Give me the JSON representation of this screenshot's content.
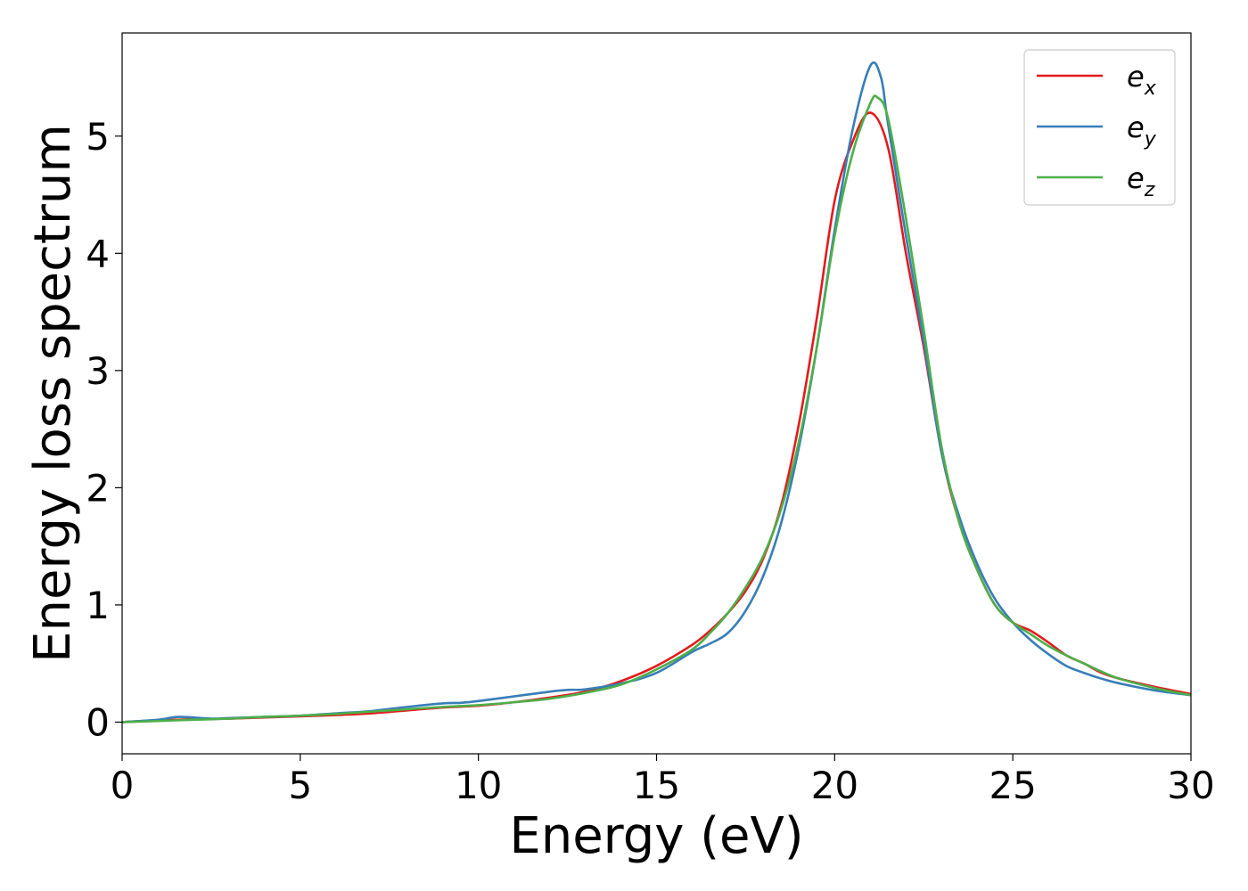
{
  "chart_data": {
    "type": "line",
    "xlabel": "Energy (eV)",
    "ylabel": "Energy loss spectrum",
    "xlim": [
      0,
      30
    ],
    "ylim": [
      -0.27,
      5.88
    ],
    "xticks": [
      0,
      5,
      10,
      15,
      20,
      25,
      30
    ],
    "yticks": [
      0,
      1,
      2,
      3,
      4,
      5
    ],
    "grid": false,
    "legend_position": "top-right",
    "series": [
      {
        "name": "e_x",
        "legend_base": "e",
        "legend_sub": "x",
        "color": "#e41a1c",
        "x": [
          0,
          1,
          2,
          3,
          4,
          5,
          6,
          7,
          8,
          9,
          10,
          11,
          12,
          13,
          14,
          15,
          16,
          16.5,
          17,
          17.5,
          18,
          18.5,
          19,
          19.5,
          20,
          20.5,
          21,
          21.5,
          22,
          22.5,
          23,
          23.5,
          24,
          24.5,
          25,
          25.5,
          26,
          26.5,
          27,
          27.5,
          28,
          29,
          30
        ],
        "y": [
          0,
          0.015,
          0.025,
          0.03,
          0.04,
          0.05,
          0.06,
          0.075,
          0.1,
          0.125,
          0.14,
          0.17,
          0.21,
          0.26,
          0.35,
          0.48,
          0.66,
          0.78,
          0.93,
          1.12,
          1.4,
          1.85,
          2.55,
          3.45,
          4.45,
          4.95,
          5.2,
          4.9,
          4.0,
          3.2,
          2.3,
          1.7,
          1.3,
          1.0,
          0.85,
          0.78,
          0.68,
          0.57,
          0.5,
          0.42,
          0.37,
          0.3,
          0.24
        ]
      },
      {
        "name": "e_y",
        "legend_base": "e",
        "legend_sub": "y",
        "color": "#377eb8",
        "x": [
          0,
          1,
          1.6,
          2.5,
          3,
          4,
          5,
          6,
          7,
          8,
          9,
          9.5,
          10,
          11,
          12,
          12.5,
          13,
          14,
          15,
          16,
          16.5,
          17,
          17.5,
          18,
          18.5,
          19,
          19.5,
          20,
          20.5,
          21,
          21.3,
          21.5,
          22,
          22.5,
          23,
          23.5,
          24,
          24.5,
          25,
          25.5,
          26,
          26.5,
          27,
          27.5,
          28,
          29,
          30
        ],
        "y": [
          0,
          0.02,
          0.045,
          0.03,
          0.035,
          0.045,
          0.055,
          0.075,
          0.095,
          0.13,
          0.16,
          0.165,
          0.18,
          0.22,
          0.26,
          0.275,
          0.28,
          0.33,
          0.42,
          0.6,
          0.67,
          0.76,
          0.95,
          1.25,
          1.7,
          2.35,
          3.2,
          4.2,
          5.05,
          5.6,
          5.5,
          5.1,
          4.15,
          3.25,
          2.3,
          1.75,
          1.35,
          1.05,
          0.85,
          0.7,
          0.58,
          0.48,
          0.42,
          0.37,
          0.33,
          0.27,
          0.23
        ]
      },
      {
        "name": "e_z",
        "legend_base": "e",
        "legend_sub": "z",
        "color": "#4daf4a",
        "x": [
          0,
          1,
          2,
          3,
          4,
          5,
          6,
          7,
          8,
          9,
          10,
          11,
          12,
          13,
          14,
          15,
          16,
          16.5,
          17,
          17.5,
          18,
          18.5,
          19,
          19.5,
          20,
          20.5,
          21,
          21.2,
          21.5,
          22,
          22.5,
          23,
          23.5,
          24,
          24.5,
          25,
          25.5,
          26,
          26.5,
          27,
          27.5,
          28,
          29,
          30
        ],
        "y": [
          0,
          0.01,
          0.02,
          0.03,
          0.045,
          0.055,
          0.07,
          0.09,
          0.11,
          0.13,
          0.145,
          0.17,
          0.2,
          0.25,
          0.32,
          0.45,
          0.62,
          0.76,
          0.93,
          1.15,
          1.42,
          1.82,
          2.4,
          3.2,
          4.15,
          4.85,
          5.28,
          5.33,
          5.15,
          4.3,
          3.35,
          2.35,
          1.7,
          1.3,
          1.0,
          0.85,
          0.75,
          0.65,
          0.57,
          0.5,
          0.43,
          0.37,
          0.29,
          0.23
        ]
      }
    ]
  }
}
